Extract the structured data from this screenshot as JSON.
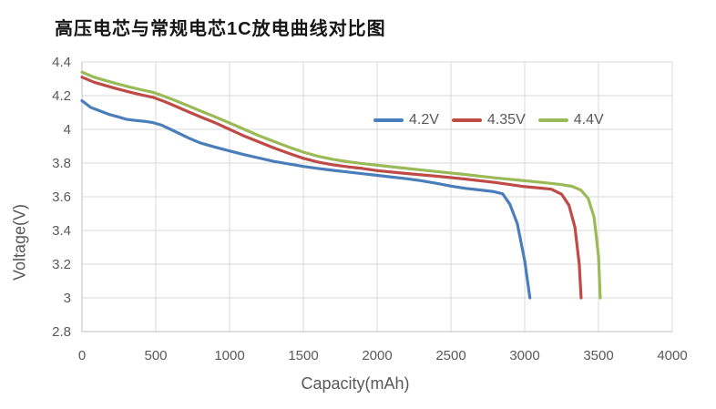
{
  "title": "高压电芯与常规电芯1C放电曲线对比图",
  "chart_data": {
    "type": "line",
    "title": "高压电芯与常规电芯1C放电曲线对比图",
    "xlabel": "Capacity(mAh)",
    "ylabel": "Voltage(V)",
    "xlim": [
      0,
      4000
    ],
    "ylim": [
      2.8,
      4.4
    ],
    "x_ticks": [
      0,
      500,
      1000,
      1500,
      2000,
      2500,
      3000,
      3500,
      4000
    ],
    "y_ticks": [
      2.8,
      3,
      3.2,
      3.4,
      3.6,
      3.8,
      4,
      4.2,
      4.4
    ],
    "y_tick_labels": [
      "2.8",
      "3",
      "3.2",
      "3.4",
      "3.6",
      "3.8",
      "4",
      "4.2",
      "4.4"
    ],
    "grid": true,
    "grid_color": "#D9D9D9",
    "axis_line_color": "#BFBFBF",
    "tick_text_color": "#595959",
    "legend_position": "inside-top-right",
    "series": [
      {
        "name": "4.2V",
        "color": "#4A7EBB",
        "points": [
          [
            0,
            4.17
          ],
          [
            60,
            4.13
          ],
          [
            120,
            4.11
          ],
          [
            180,
            4.09
          ],
          [
            240,
            4.075
          ],
          [
            300,
            4.06
          ],
          [
            360,
            4.053
          ],
          [
            420,
            4.048
          ],
          [
            480,
            4.04
          ],
          [
            540,
            4.025
          ],
          [
            600,
            4.0
          ],
          [
            660,
            3.975
          ],
          [
            720,
            3.95
          ],
          [
            800,
            3.92
          ],
          [
            900,
            3.895
          ],
          [
            1000,
            3.872
          ],
          [
            1100,
            3.85
          ],
          [
            1200,
            3.83
          ],
          [
            1300,
            3.81
          ],
          [
            1400,
            3.795
          ],
          [
            1500,
            3.78
          ],
          [
            1600,
            3.768
          ],
          [
            1700,
            3.757
          ],
          [
            1800,
            3.747
          ],
          [
            1900,
            3.737
          ],
          [
            2000,
            3.727
          ],
          [
            2100,
            3.717
          ],
          [
            2200,
            3.707
          ],
          [
            2300,
            3.695
          ],
          [
            2400,
            3.68
          ],
          [
            2500,
            3.663
          ],
          [
            2600,
            3.65
          ],
          [
            2700,
            3.64
          ],
          [
            2780,
            3.632
          ],
          [
            2850,
            3.618
          ],
          [
            2900,
            3.555
          ],
          [
            2950,
            3.44
          ],
          [
            3000,
            3.22
          ],
          [
            3035,
            3.0
          ]
        ]
      },
      {
        "name": "4.35V",
        "color": "#BE4B48",
        "points": [
          [
            0,
            4.31
          ],
          [
            80,
            4.28
          ],
          [
            160,
            4.26
          ],
          [
            240,
            4.24
          ],
          [
            320,
            4.222
          ],
          [
            400,
            4.205
          ],
          [
            480,
            4.19
          ],
          [
            560,
            4.165
          ],
          [
            640,
            4.135
          ],
          [
            720,
            4.105
          ],
          [
            800,
            4.075
          ],
          [
            900,
            4.04
          ],
          [
            1000,
            4.0
          ],
          [
            1100,
            3.96
          ],
          [
            1200,
            3.925
          ],
          [
            1300,
            3.89
          ],
          [
            1400,
            3.858
          ],
          [
            1500,
            3.828
          ],
          [
            1600,
            3.806
          ],
          [
            1700,
            3.79
          ],
          [
            1800,
            3.778
          ],
          [
            1900,
            3.768
          ],
          [
            2000,
            3.755
          ],
          [
            2200,
            3.738
          ],
          [
            2400,
            3.722
          ],
          [
            2600,
            3.705
          ],
          [
            2800,
            3.685
          ],
          [
            3000,
            3.66
          ],
          [
            3100,
            3.652
          ],
          [
            3180,
            3.645
          ],
          [
            3250,
            3.615
          ],
          [
            3300,
            3.55
          ],
          [
            3340,
            3.42
          ],
          [
            3370,
            3.2
          ],
          [
            3382,
            3.0
          ]
        ]
      },
      {
        "name": "4.4V",
        "color": "#9ABA58",
        "points": [
          [
            0,
            4.34
          ],
          [
            80,
            4.31
          ],
          [
            160,
            4.29
          ],
          [
            240,
            4.27
          ],
          [
            320,
            4.252
          ],
          [
            400,
            4.235
          ],
          [
            480,
            4.22
          ],
          [
            560,
            4.195
          ],
          [
            640,
            4.168
          ],
          [
            720,
            4.14
          ],
          [
            800,
            4.11
          ],
          [
            900,
            4.075
          ],
          [
            1000,
            4.038
          ],
          [
            1100,
            4.0
          ],
          [
            1200,
            3.962
          ],
          [
            1300,
            3.928
          ],
          [
            1400,
            3.895
          ],
          [
            1500,
            3.865
          ],
          [
            1600,
            3.84
          ],
          [
            1700,
            3.822
          ],
          [
            1800,
            3.808
          ],
          [
            1900,
            3.797
          ],
          [
            2000,
            3.787
          ],
          [
            2200,
            3.768
          ],
          [
            2400,
            3.75
          ],
          [
            2600,
            3.732
          ],
          [
            2800,
            3.712
          ],
          [
            3000,
            3.695
          ],
          [
            3150,
            3.682
          ],
          [
            3250,
            3.672
          ],
          [
            3320,
            3.662
          ],
          [
            3380,
            3.64
          ],
          [
            3430,
            3.59
          ],
          [
            3470,
            3.48
          ],
          [
            3500,
            3.25
          ],
          [
            3512,
            3.0
          ]
        ]
      }
    ]
  }
}
